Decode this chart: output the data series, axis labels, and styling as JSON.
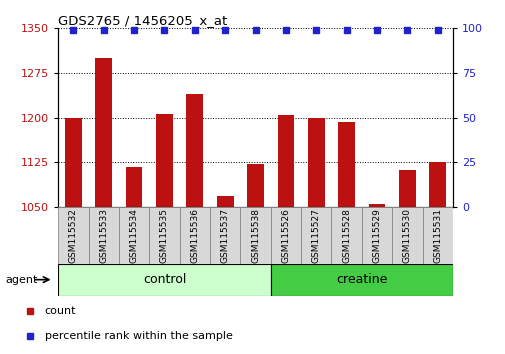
{
  "title": "GDS2765 / 1456205_x_at",
  "samples": [
    "GSM115532",
    "GSM115533",
    "GSM115534",
    "GSM115535",
    "GSM115536",
    "GSM115537",
    "GSM115538",
    "GSM115526",
    "GSM115527",
    "GSM115528",
    "GSM115529",
    "GSM115530",
    "GSM115531"
  ],
  "counts": [
    1200,
    1300,
    1118,
    1207,
    1240,
    1068,
    1123,
    1205,
    1200,
    1193,
    1055,
    1112,
    1126
  ],
  "percentiles": [
    99,
    99,
    99,
    99,
    99,
    99,
    99,
    99,
    99,
    99,
    99,
    99,
    99
  ],
  "ylim_left": [
    1050,
    1350
  ],
  "ylim_right": [
    0,
    100
  ],
  "yticks_left": [
    1050,
    1125,
    1200,
    1275,
    1350
  ],
  "yticks_right": [
    0,
    25,
    50,
    75,
    100
  ],
  "bar_color": "#bb1111",
  "dot_color": "#2222cc",
  "sample_box_color": "#d8d8d8",
  "control_color": "#ccffcc",
  "creatine_color": "#44cc44",
  "agent_label": "agent",
  "control_label": "control",
  "creatine_label": "creatine",
  "legend_count_label": "count",
  "legend_pct_label": "percentile rank within the sample",
  "n_control": 7,
  "n_creatine": 6
}
